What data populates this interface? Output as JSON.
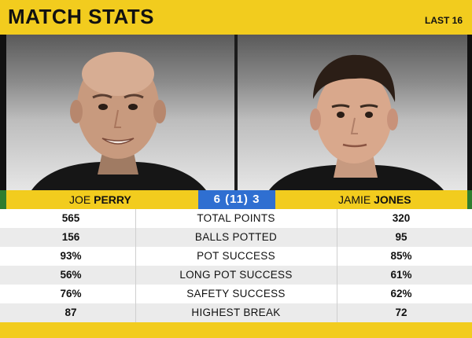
{
  "header": {
    "title": "MATCH STATS",
    "round": "LAST 16"
  },
  "players": {
    "left": {
      "first": "JOE",
      "last": "PERRY"
    },
    "right": {
      "first": "JAMIE",
      "last": "JONES"
    }
  },
  "score": "6 (11) 3",
  "stats": [
    {
      "label": "TOTAL POINTS",
      "left": "565",
      "right": "320"
    },
    {
      "label": "BALLS POTTED",
      "left": "156",
      "right": "95"
    },
    {
      "label": "POT SUCCESS",
      "left": "93%",
      "right": "85%"
    },
    {
      "label": "LONG POT SUCCESS",
      "left": "56%",
      "right": "61%"
    },
    {
      "label": "SAFETY SUCCESS",
      "left": "76%",
      "right": "62%"
    },
    {
      "label": "HIGHEST BREAK",
      "left": "87",
      "right": "72"
    }
  ],
  "colors": {
    "accent_yellow": "#f2cc1e",
    "score_blue": "#2f6fd1",
    "green_edge": "#2f7d2f"
  }
}
